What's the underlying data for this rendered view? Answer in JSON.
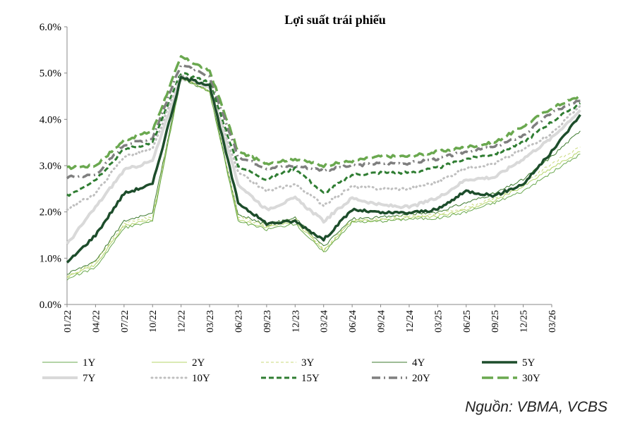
{
  "chart_data": {
    "type": "line",
    "title": "Lợi suất trái phiếu",
    "xlabel": "",
    "ylabel": "",
    "ylim": [
      0,
      6
    ],
    "y_ticks": [
      "0.0%",
      "1.0%",
      "2.0%",
      "3.0%",
      "4.0%",
      "5.0%",
      "6.0%"
    ],
    "x_ticks": [
      "01/22",
      "04/22",
      "07/22",
      "10/22",
      "12/22",
      "03/23",
      "06/23",
      "09/23",
      "12/23",
      "03/24",
      "06/24",
      "09/24",
      "12/24",
      "03/25",
      "06/25",
      "09/25",
      "12/25",
      "03/26"
    ],
    "series": [
      {
        "name": "1Y",
        "color": "#6aa84f",
        "style": "thin",
        "values": [
          0.55,
          0.8,
          1.65,
          1.8,
          4.9,
          4.6,
          1.8,
          1.62,
          1.75,
          1.12,
          1.78,
          1.8,
          1.85,
          1.86,
          2.0,
          2.2,
          2.45,
          2.85,
          3.25
        ]
      },
      {
        "name": "2Y",
        "color": "#b5d56a",
        "style": "thin",
        "values": [
          0.6,
          0.85,
          1.7,
          1.85,
          4.9,
          4.6,
          1.85,
          1.65,
          1.8,
          1.15,
          1.8,
          1.82,
          1.88,
          1.9,
          2.05,
          2.25,
          2.55,
          2.95,
          3.3
        ]
      },
      {
        "name": "3Y",
        "color": "#c9d97a",
        "style": "dash-thin",
        "values": [
          0.62,
          0.9,
          1.75,
          1.9,
          4.9,
          4.6,
          1.9,
          1.7,
          1.85,
          1.2,
          1.82,
          1.85,
          1.9,
          1.95,
          2.1,
          2.3,
          2.6,
          3.05,
          3.4
        ]
      },
      {
        "name": "4Y",
        "color": "#3d7a2e",
        "style": "thin",
        "values": [
          0.65,
          0.95,
          1.8,
          2.0,
          4.9,
          4.6,
          1.95,
          1.72,
          1.87,
          1.25,
          1.85,
          1.88,
          1.95,
          2.0,
          2.2,
          2.4,
          2.7,
          3.2,
          3.75
        ]
      },
      {
        "name": "5Y",
        "color": "#1d4d2b",
        "style": "thick",
        "values": [
          0.9,
          1.5,
          2.4,
          2.6,
          4.9,
          4.75,
          2.2,
          1.75,
          1.8,
          1.4,
          2.05,
          1.98,
          1.98,
          2.05,
          2.45,
          2.35,
          2.6,
          3.3,
          4.1
        ]
      },
      {
        "name": "7Y",
        "color": "#d9d9d9",
        "style": "thick",
        "values": [
          1.3,
          2.1,
          2.9,
          3.1,
          4.9,
          4.7,
          2.6,
          2.05,
          2.3,
          1.8,
          2.3,
          2.15,
          2.1,
          2.3,
          2.7,
          2.75,
          3.15,
          3.6,
          4.2
        ]
      },
      {
        "name": "10Y",
        "color": "#bfbfbf",
        "style": "dotted",
        "values": [
          2.05,
          2.4,
          3.2,
          3.35,
          4.95,
          4.7,
          2.85,
          2.45,
          2.6,
          2.15,
          2.55,
          2.5,
          2.5,
          2.65,
          2.95,
          3.05,
          3.35,
          3.7,
          4.3
        ]
      },
      {
        "name": "15Y",
        "color": "#2f7d32",
        "style": "dashed",
        "values": [
          2.35,
          2.7,
          3.35,
          3.5,
          5.0,
          4.8,
          3.0,
          2.7,
          2.95,
          2.4,
          2.8,
          2.85,
          2.85,
          2.95,
          3.15,
          3.25,
          3.5,
          3.95,
          4.35
        ]
      },
      {
        "name": "20Y",
        "color": "#7f7f7f",
        "style": "dashdot",
        "values": [
          2.75,
          2.8,
          3.45,
          3.6,
          5.2,
          4.9,
          3.2,
          2.95,
          3.0,
          2.9,
          3.0,
          3.05,
          3.05,
          3.15,
          3.3,
          3.4,
          3.65,
          4.15,
          4.4
        ]
      },
      {
        "name": "30Y",
        "color": "#6aa84f",
        "style": "longdash",
        "values": [
          2.95,
          3.0,
          3.55,
          3.75,
          5.35,
          5.05,
          3.3,
          3.05,
          3.15,
          3.0,
          3.1,
          3.2,
          3.2,
          3.3,
          3.4,
          3.5,
          3.85,
          4.25,
          4.5
        ]
      }
    ]
  },
  "source": "Nguồn: VBMA, VCBS"
}
